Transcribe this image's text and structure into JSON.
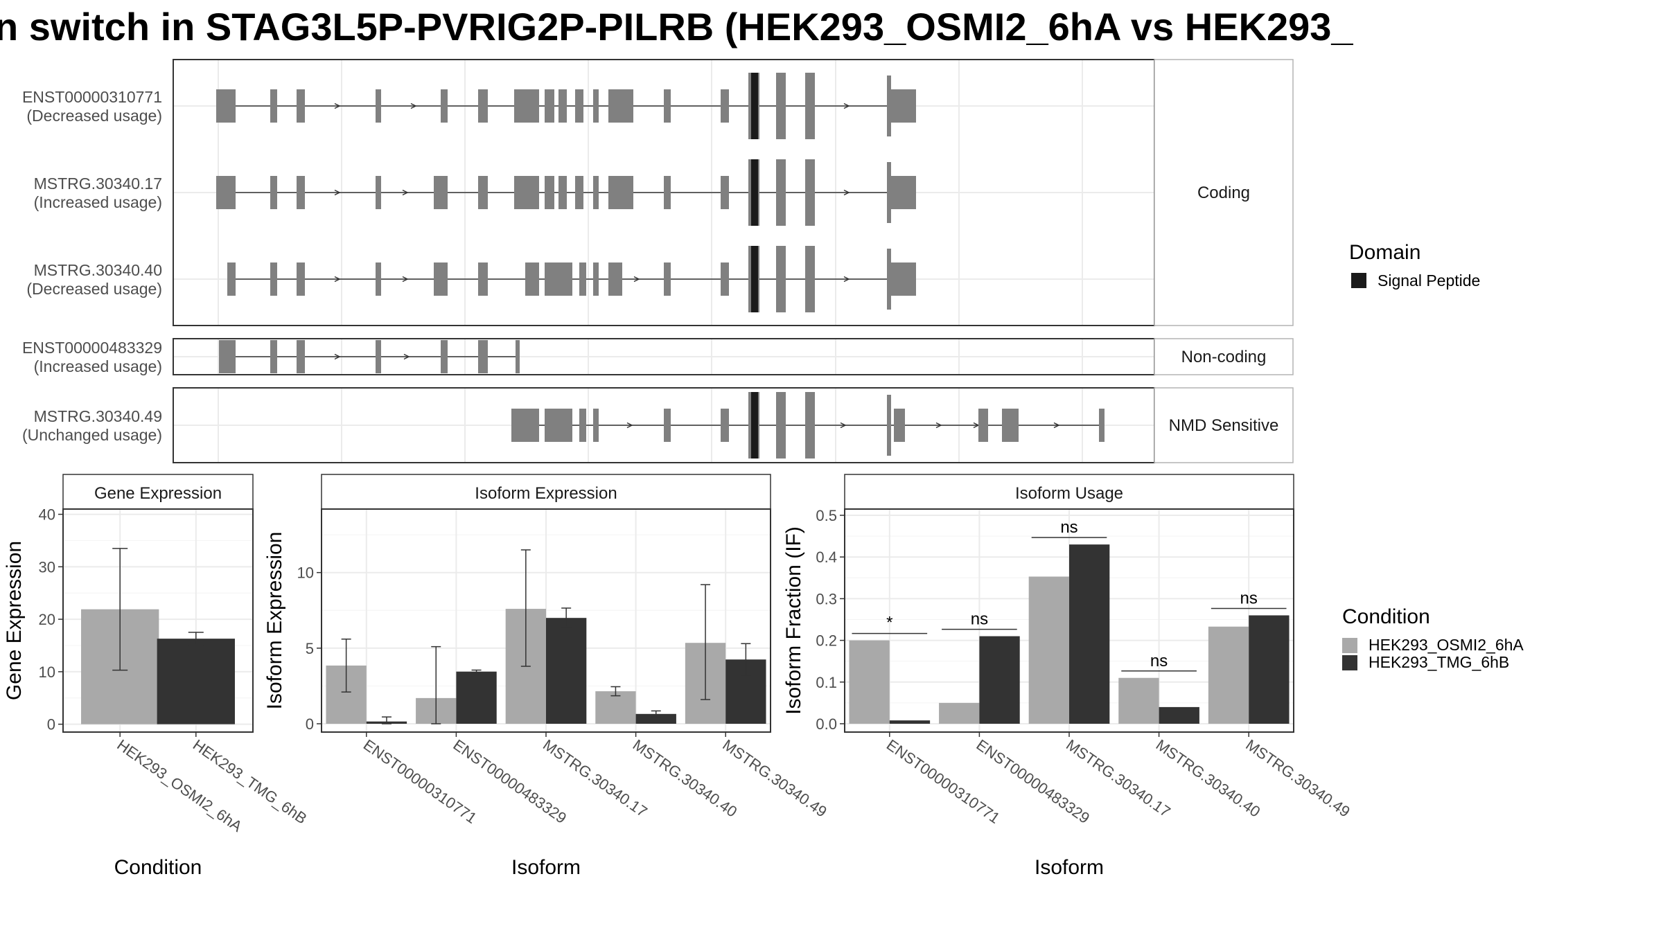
{
  "title": "n switch in STAG3L5P-PVRIG2P-PILRB (HEK293_OSMI2_6hA vs HEK293_",
  "colors": {
    "exon": "#808080",
    "domain": "#1a1a1a",
    "osmi": "#a9a9a9",
    "tmg": "#333333",
    "grid": "#ebebeb",
    "frame": "#333333",
    "strip_border": "#b3b3b3"
  },
  "legend_domain": {
    "title": "Domain",
    "items": [
      {
        "label": "Signal Peptide",
        "color": "#1a1a1a"
      }
    ]
  },
  "legend_condition": {
    "title": "Condition",
    "items": [
      {
        "label": "HEK293_OSMI2_6hA",
        "color": "#a9a9a9"
      },
      {
        "label": "HEK293_TMG_6hB",
        "color": "#333333"
      }
    ]
  },
  "structure": {
    "panels": [
      {
        "label": "Coding",
        "transcripts": [
          {
            "id": "ENST00000310771",
            "usage": "(Decreased usage)",
            "exons": [
              [
                312,
                340
              ],
              [
                390,
                400
              ],
              [
                428,
                440
              ],
              [
                542,
                550
              ],
              [
                636,
                646
              ],
              [
                690,
                704
              ],
              [
                742,
                778
              ],
              [
                786,
                800
              ],
              [
                806,
                818
              ],
              [
                830,
                842
              ],
              [
                856,
                864
              ],
              [
                878,
                914
              ],
              [
                958,
                968
              ],
              [
                1040,
                1052
              ],
              [
                1080,
                1096
              ],
              [
                1120,
                1134
              ],
              [
                1162,
                1176
              ],
              [
                1280,
                1286
              ],
              [
                1286,
                1322
              ]
            ],
            "domains": [
              [
                1084,
                1094
              ]
            ],
            "arrows": [
              490,
              600,
              700,
              1225
            ]
          },
          {
            "id": "MSTRG.30340.17",
            "usage": "(Increased usage)",
            "exons": [
              [
                312,
                340
              ],
              [
                390,
                400
              ],
              [
                428,
                440
              ],
              [
                542,
                550
              ],
              [
                626,
                646
              ],
              [
                690,
                704
              ],
              [
                742,
                778
              ],
              [
                786,
                800
              ],
              [
                806,
                818
              ],
              [
                830,
                842
              ],
              [
                856,
                864
              ],
              [
                878,
                914
              ],
              [
                958,
                968
              ],
              [
                1040,
                1052
              ],
              [
                1080,
                1096
              ],
              [
                1120,
                1134
              ],
              [
                1162,
                1176
              ],
              [
                1280,
                1286
              ],
              [
                1286,
                1322
              ]
            ],
            "domains": [
              [
                1084,
                1094
              ]
            ],
            "arrows": [
              490,
              588,
              700,
              1225
            ]
          },
          {
            "id": "MSTRG.30340.40",
            "usage": "(Decreased usage)",
            "exons": [
              [
                328,
                340
              ],
              [
                390,
                400
              ],
              [
                428,
                440
              ],
              [
                542,
                550
              ],
              [
                626,
                646
              ],
              [
                690,
                704
              ],
              [
                758,
                778
              ],
              [
                786,
                826
              ],
              [
                836,
                846
              ],
              [
                856,
                864
              ],
              [
                878,
                898
              ],
              [
                958,
                968
              ],
              [
                1040,
                1052
              ],
              [
                1080,
                1096
              ],
              [
                1120,
                1134
              ],
              [
                1162,
                1176
              ],
              [
                1280,
                1286
              ],
              [
                1286,
                1322
              ]
            ],
            "domains": [
              [
                1084,
                1094
              ]
            ],
            "arrows": [
              490,
              588,
              922,
              1225
            ]
          }
        ]
      },
      {
        "label": "Non-coding",
        "transcripts": [
          {
            "id": "ENST00000483329",
            "usage": "(Increased usage)",
            "exons": [
              [
                316,
                340
              ],
              [
                390,
                400
              ],
              [
                428,
                440
              ],
              [
                542,
                550
              ],
              [
                636,
                646
              ],
              [
                690,
                704
              ],
              [
                744,
                750
              ]
            ],
            "domains": [],
            "arrows": [
              490,
              590
            ]
          }
        ]
      },
      {
        "label": "NMD Sensitive",
        "transcripts": [
          {
            "id": "MSTRG.30340.49",
            "usage": "(Unchanged usage)",
            "exons": [
              [
                738,
                778
              ],
              [
                786,
                826
              ],
              [
                836,
                846
              ],
              [
                856,
                864
              ],
              [
                958,
                968
              ],
              [
                1040,
                1052
              ],
              [
                1080,
                1096
              ],
              [
                1120,
                1134
              ],
              [
                1162,
                1176
              ],
              [
                1280,
                1286
              ],
              [
                1290,
                1306
              ],
              [
                1412,
                1426
              ],
              [
                1446,
                1470
              ],
              [
                1586,
                1594
              ]
            ],
            "domains": [
              [
                1084,
                1094
              ]
            ],
            "arrows": [
              912,
              1220,
              1358,
              1412,
              1528
            ]
          }
        ]
      }
    ]
  },
  "chart_data": [
    {
      "type": "bar",
      "title": "Gene Expression",
      "xlabel": "Condition",
      "ylabel": "Gene Expression",
      "categories": [
        "HEK293_OSMI2_6hA",
        "HEK293_TMG_6hB"
      ],
      "values": [
        21.9,
        16.3
      ],
      "errors": [
        [
          10.3,
          33.5
        ],
        [
          15.1,
          17.5
        ]
      ],
      "ylim": [
        -1.5,
        41
      ],
      "yticks": [
        "0",
        "10",
        "20",
        "30",
        "40"
      ]
    },
    {
      "type": "bar",
      "title": "Isoform Expression",
      "xlabel": "Isoform",
      "ylabel": "Isoform Expression",
      "categories": [
        "ENST00000310771",
        "ENST00000483329",
        "MSTRG.30340.17",
        "MSTRG.30340.40",
        "MSTRG.30340.49"
      ],
      "series": [
        {
          "name": "HEK293_OSMI2_6hA",
          "values": [
            3.85,
            1.7,
            7.6,
            2.15,
            5.35
          ],
          "errors": [
            [
              2.1,
              5.6
            ],
            [
              0.0,
              5.1
            ],
            [
              3.8,
              11.5
            ],
            [
              1.85,
              2.45
            ],
            [
              1.6,
              9.2
            ]
          ]
        },
        {
          "name": "HEK293_TMG_6hB",
          "values": [
            0.15,
            3.45,
            7.0,
            0.65,
            4.25
          ],
          "errors": [
            [
              0.0,
              0.45
            ],
            [
              3.35,
              3.55
            ],
            [
              6.4,
              7.65
            ],
            [
              0.45,
              0.85
            ],
            [
              3.2,
              5.3
            ]
          ]
        }
      ],
      "ylim": [
        -0.55,
        14.2
      ],
      "yticks": [
        "0",
        "5",
        "10"
      ]
    },
    {
      "type": "bar",
      "title": "Isoform Usage",
      "xlabel": "Isoform",
      "ylabel": "Isoform Fraction (IF)",
      "categories": [
        "ENST00000310771",
        "ENST00000483329",
        "MSTRG.30340.17",
        "MSTRG.30340.40",
        "MSTRG.30340.49"
      ],
      "series": [
        {
          "name": "HEK293_OSMI2_6hA",
          "values": [
            0.2,
            0.05,
            0.353,
            0.11,
            0.233
          ]
        },
        {
          "name": "HEK293_TMG_6hB",
          "values": [
            0.008,
            0.21,
            0.43,
            0.04,
            0.26
          ]
        }
      ],
      "significance": [
        "*",
        "ns",
        "ns",
        "ns",
        "ns"
      ],
      "ylim": [
        -0.02,
        0.515
      ],
      "yticks": [
        "0.0",
        "0.1",
        "0.2",
        "0.3",
        "0.4",
        "0.5"
      ]
    }
  ]
}
